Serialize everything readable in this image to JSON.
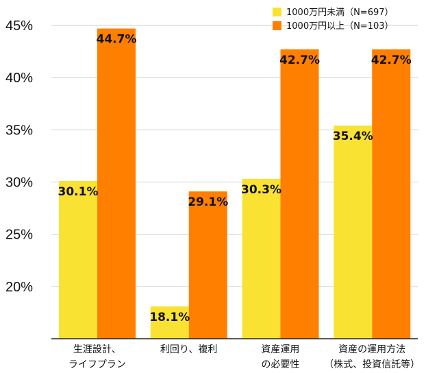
{
  "colors": {
    "series1": "#FAE233",
    "series2": "#FF7F00",
    "grid": "#cfcfcf",
    "axis": "#222222"
  },
  "chart_data": {
    "type": "bar",
    "title": "",
    "xlabel": "",
    "ylabel": "",
    "ylim": [
      15,
      45
    ],
    "yticks": [
      20,
      25,
      30,
      35,
      40,
      45
    ],
    "ytick_labels": [
      "20%",
      "25%",
      "30%",
      "35%",
      "40%",
      "45%"
    ],
    "grid": true,
    "legend_position": "top-right",
    "categories": [
      [
        "生涯設計、",
        "ライフプラン"
      ],
      [
        "利回り、複利"
      ],
      [
        "資産運用",
        "の必要性"
      ],
      [
        "資産の運用方法",
        "（株式、投資信託等）"
      ]
    ],
    "series": [
      {
        "name": "1000万円未満（N=697）",
        "values": [
          30.1,
          18.1,
          30.3,
          35.4
        ],
        "labels": [
          "30.1%",
          "18.1%",
          "30.3%",
          "35.4%"
        ]
      },
      {
        "name": "1000万円以上（N=103）",
        "values": [
          44.7,
          29.1,
          42.7,
          42.7
        ],
        "labels": [
          "44.7%",
          "29.1%",
          "42.7%",
          "42.7%"
        ]
      }
    ]
  }
}
